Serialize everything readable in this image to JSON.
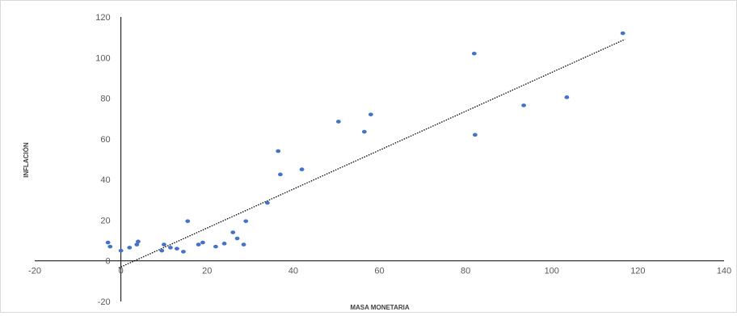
{
  "chart_data": {
    "type": "scatter",
    "title": "",
    "xlabel": "MASA MONETARIA",
    "ylabel": "INFLACIÓN",
    "xlim": [
      -20,
      140
    ],
    "ylim": [
      -20,
      120
    ],
    "x_ticks": [
      -20,
      0,
      20,
      40,
      60,
      80,
      100,
      120,
      140
    ],
    "y_ticks": [
      -20,
      0,
      20,
      40,
      60,
      80,
      100,
      120
    ],
    "grid": false,
    "legend": "none",
    "marker_color": "#4472c4",
    "trendline": {
      "type": "linear",
      "style": "dotted",
      "color": "#000000",
      "from": [
        -0.5,
        -3.5
      ],
      "to": [
        117,
        109
      ]
    },
    "series": [
      {
        "points": [
          [
            -3,
            9
          ],
          [
            -2.5,
            7
          ],
          [
            0,
            5
          ],
          [
            2,
            6.5
          ],
          [
            3.7,
            8
          ],
          [
            4,
            9.5
          ],
          [
            9.5,
            5
          ],
          [
            10,
            8
          ],
          [
            11.5,
            6.5
          ],
          [
            13,
            6
          ],
          [
            14.5,
            4.5
          ],
          [
            15.5,
            19.5
          ],
          [
            18,
            8
          ],
          [
            19,
            9
          ],
          [
            22,
            7
          ],
          [
            24,
            8.5
          ],
          [
            26,
            14
          ],
          [
            27,
            11
          ],
          [
            28.5,
            8
          ],
          [
            29,
            19.5
          ],
          [
            34,
            28.5
          ],
          [
            36.5,
            54
          ],
          [
            37,
            42.5
          ],
          [
            42,
            45
          ],
          [
            50.5,
            68.5
          ],
          [
            56.5,
            63.5
          ],
          [
            58,
            72
          ],
          [
            82,
            102
          ],
          [
            82.2,
            62
          ],
          [
            93.5,
            76.5
          ],
          [
            103.5,
            80.5
          ],
          [
            116.5,
            112
          ]
        ]
      }
    ]
  }
}
